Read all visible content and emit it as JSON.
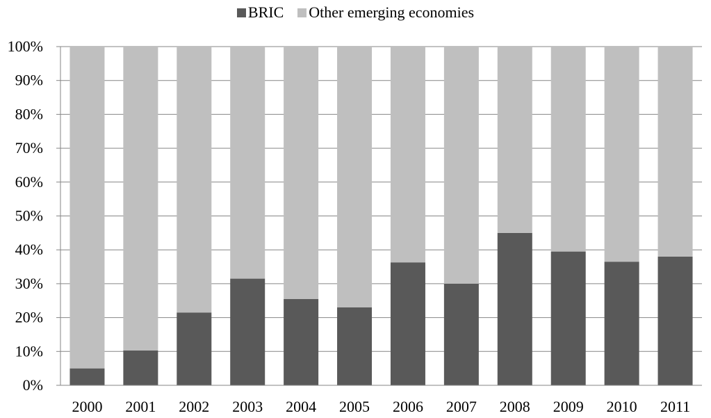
{
  "chart_data": {
    "type": "bar",
    "stacked": "percent",
    "categories": [
      "2000",
      "2001",
      "2002",
      "2003",
      "2004",
      "2005",
      "2006",
      "2007",
      "2008",
      "2009",
      "2010",
      "2011"
    ],
    "series": [
      {
        "name": "BRIC",
        "color": "#595959",
        "values": [
          5,
          10.3,
          21.5,
          31.5,
          25.5,
          23,
          36.3,
          30,
          45,
          39.5,
          36.5,
          38
        ]
      },
      {
        "name": "Other emerging economies",
        "color": "#bfbfbf",
        "values": [
          95,
          89.7,
          78.5,
          68.5,
          74.5,
          77,
          63.7,
          70,
          55,
          60.5,
          63.5,
          62
        ]
      }
    ],
    "y_ticks": [
      "0%",
      "10%",
      "20%",
      "30%",
      "40%",
      "50%",
      "60%",
      "70%",
      "80%",
      "90%",
      "100%"
    ],
    "ylim": [
      0,
      100
    ],
    "grid": true,
    "legend_position": "top-center"
  }
}
